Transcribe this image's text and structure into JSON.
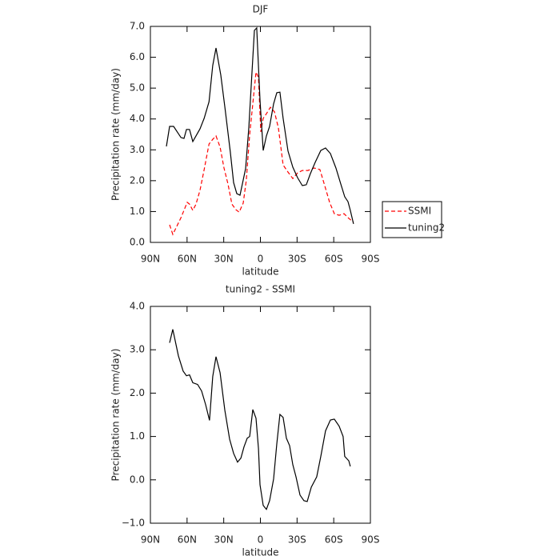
{
  "chart_data": [
    {
      "type": "line",
      "title": "DJF",
      "xlabel": "latitude",
      "ylabel": "Precipitation rate (mm/day)",
      "xlim": [
        90,
        -90
      ],
      "xticks": [
        {
          "value": 90,
          "label": "90N"
        },
        {
          "value": 60,
          "label": "60N"
        },
        {
          "value": 30,
          "label": "30N"
        },
        0,
        {
          "value": -30,
          "label": "30S"
        },
        {
          "value": -60,
          "label": "60S"
        },
        {
          "value": -90,
          "label": "90S"
        }
      ],
      "ylim": [
        0,
        7
      ],
      "yticks": [
        {
          "value": 0,
          "label": "0.0"
        },
        {
          "value": 1,
          "label": "1.0"
        },
        {
          "value": 2,
          "label": "2.0"
        },
        {
          "value": 3,
          "label": "3.0"
        },
        {
          "value": 4,
          "label": "4.0"
        },
        {
          "value": 5,
          "label": "5.0"
        },
        {
          "value": 6,
          "label": "6.0"
        },
        {
          "value": 7,
          "label": "7.0"
        }
      ],
      "legend": "right",
      "series": [
        {
          "name": "SSMI",
          "color": "#ff0000",
          "linestyle": "dashed",
          "x": [
            74.3,
            71.7,
            68.4,
            65,
            62.5,
            59.9,
            58,
            55.3,
            52.7,
            49.4,
            46,
            42,
            39,
            36.3,
            33,
            29.8,
            26.5,
            23.3,
            20,
            17.4,
            14.1,
            11.5,
            8.8,
            6.2,
            3.6,
            1.6,
            -0.3,
            -2.3,
            -4.9,
            -8.2,
            -11.5,
            -14.7,
            -18.6,
            -22.6,
            -26.5,
            -30.4,
            -34.3,
            -38.9,
            -44.1,
            -48.7,
            -52.6,
            -56.6,
            -60.5,
            -64.4,
            -68.4,
            -72.3,
            -76.2
          ],
          "values": [
            0.57,
            0.26,
            0.52,
            0.8,
            1.04,
            1.3,
            1.24,
            1.04,
            1.24,
            1.69,
            2.36,
            3.19,
            3.34,
            3.45,
            3.09,
            2.41,
            1.89,
            1.24,
            1.06,
            0.98,
            1.27,
            2.02,
            3.5,
            4.49,
            5.52,
            5.34,
            3.58,
            4.02,
            4.17,
            4.38,
            4.23,
            3.71,
            2.51,
            2.28,
            2.07,
            2.25,
            2.33,
            2.33,
            2.41,
            2.36,
            1.84,
            1.3,
            0.93,
            0.88,
            0.93,
            0.78,
            0.65
          ]
        },
        {
          "name": "tuning2",
          "color": "#000000",
          "linestyle": "solid",
          "x": [
            76.9,
            74.3,
            71,
            65,
            62.5,
            60.5,
            58,
            55.3,
            49.4,
            46,
            42,
            39,
            36.3,
            32.4,
            29,
            24.6,
            21.9,
            19.3,
            16.7,
            12.1,
            9.5,
            6.9,
            4.9,
            3,
            0.3,
            -2.3,
            -4.9,
            -7.5,
            -10.8,
            -13.4,
            -16,
            -18.6,
            -22.6,
            -26.5,
            -30.4,
            -34.3,
            -37.6,
            -40.9,
            -44.8,
            -49.4,
            -53.3,
            -57.3,
            -61.8,
            -65.8,
            -69,
            -71.7,
            -73.6,
            -76.2
          ],
          "values": [
            3.11,
            3.76,
            3.76,
            3.4,
            3.37,
            3.66,
            3.66,
            3.27,
            3.68,
            4.02,
            4.56,
            5.73,
            6.3,
            5.42,
            4.36,
            2.93,
            1.94,
            1.58,
            1.53,
            2.39,
            3.71,
            5.52,
            6.87,
            6.95,
            4.61,
            2.98,
            3.45,
            3.76,
            4.49,
            4.85,
            4.87,
            4.02,
            2.96,
            2.44,
            2.1,
            1.84,
            1.87,
            2.23,
            2.59,
            2.98,
            3.06,
            2.88,
            2.41,
            1.89,
            1.48,
            1.32,
            1.04,
            0.6
          ]
        }
      ]
    },
    {
      "type": "line",
      "title": "tuning2 - SSMI",
      "xlabel": "latitude",
      "ylabel": "Precipitation rate (mm/day)",
      "xlim": [
        90,
        -90
      ],
      "xticks": [
        {
          "value": 90,
          "label": "90N"
        },
        {
          "value": 60,
          "label": "60N"
        },
        {
          "value": 30,
          "label": "30N"
        },
        0,
        {
          "value": -30,
          "label": "30S"
        },
        {
          "value": -60,
          "label": "60S"
        },
        {
          "value": -90,
          "label": "90S"
        }
      ],
      "ylim": [
        -1,
        4
      ],
      "yticks": [
        {
          "value": -1,
          "label": "−1.0"
        },
        {
          "value": 0,
          "label": "0.0"
        },
        {
          "value": 1,
          "label": "1.0"
        },
        {
          "value": 2,
          "label": "2.0"
        },
        {
          "value": 3,
          "label": "3.0"
        },
        {
          "value": 4,
          "label": "4.0"
        }
      ],
      "color": "#000000",
      "x": [
        74.3,
        71.7,
        67.1,
        63.2,
        60.5,
        58,
        55.3,
        51.4,
        48.1,
        44.8,
        41.6,
        39,
        36.3,
        33,
        29.1,
        25.2,
        21.9,
        18.7,
        16,
        13.4,
        10.8,
        8.8,
        6.2,
        3.6,
        1.6,
        0.3,
        -2.3,
        -4.9,
        -7.5,
        -10.8,
        -13.4,
        -16,
        -18.6,
        -21.3,
        -23.9,
        -26.5,
        -29.1,
        -32.4,
        -35.6,
        -38.3,
        -41.6,
        -46.1,
        -49.4,
        -53.3,
        -57.3,
        -60.5,
        -64.4,
        -67.7,
        -69,
        -72.3,
        -73.6
      ],
      "values": [
        3.16,
        3.47,
        2.86,
        2.51,
        2.4,
        2.42,
        2.24,
        2.2,
        2.05,
        1.73,
        1.37,
        2.38,
        2.84,
        2.47,
        1.61,
        0.94,
        0.61,
        0.41,
        0.5,
        0.76,
        0.96,
        1.0,
        1.62,
        1.42,
        0.72,
        -0.11,
        -0.59,
        -0.68,
        -0.48,
        0.02,
        0.83,
        1.51,
        1.44,
        0.96,
        0.79,
        0.35,
        0.07,
        -0.35,
        -0.48,
        -0.5,
        -0.17,
        0.07,
        0.54,
        1.13,
        1.38,
        1.4,
        1.24,
        1.0,
        0.54,
        0.44,
        0.31
      ]
    }
  ]
}
